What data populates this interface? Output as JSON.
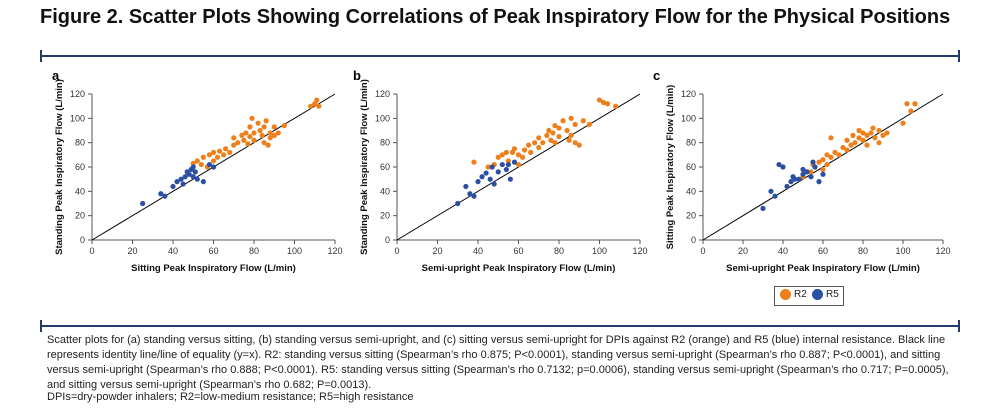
{
  "figure": {
    "title": "Figure 2. Scatter Plots Showing Correlations of Peak Inspiratory Flow for the Physical Positions",
    "caption_main": "Scatter plots for (a) standing versus sitting, (b) standing versus semi-upright, and (c) sitting versus semi-upright for DPIs against R2 (orange) and R5 (blue) internal resistance. Black line represents identity line/line of equality (y=x). R2: standing versus sitting (Spearman’s rho 0.875; P<0.0001), standing versus semi-upright (Spearman’s rho 0.887; P<0.0001), and sitting versus semi-upright (Spearman’s rho 0.888; P<0.0001). R5: standing versus sitting (Spearman’s rho 0.7132; p=0.0006), standing versus semi-upright (Spearman’s rho 0.717; P=0.0005), and sitting versus semi-upright (Spearman’s rho 0.682; P=0.0013).",
    "caption_abbrev": "DPIs=dry-powder inhalers; R2=low-medium resistance; R5=high resistance"
  },
  "colors": {
    "R2": "#ee7f1b",
    "R5": "#2b4fa3",
    "rule": "#233a6b",
    "identity_line": "#000000"
  },
  "legend": {
    "items": [
      {
        "label": "R2",
        "color": "#ee7f1b"
      },
      {
        "label": "R5",
        "color": "#2b4fa3"
      }
    ],
    "placement": "bottom-right"
  },
  "chart_data": [
    {
      "type": "scatter",
      "panel_label": "a",
      "xlabel": "Sitting Peak Inspiratory Flow (L/min)",
      "ylabel": "Standing Peak Inspiratory Flow (L/min)",
      "xlim": [
        0,
        120
      ],
      "ylim": [
        0,
        120
      ],
      "xticks": [
        0,
        20,
        40,
        60,
        80,
        100,
        120
      ],
      "yticks": [
        0,
        20,
        40,
        60,
        80,
        100,
        120
      ],
      "identity_line": true,
      "series": [
        {
          "name": "R2",
          "points": [
            [
              50,
              63
            ],
            [
              52,
              65
            ],
            [
              54,
              62
            ],
            [
              55,
              68
            ],
            [
              57,
              60
            ],
            [
              58,
              70
            ],
            [
              60,
              65
            ],
            [
              60,
              72
            ],
            [
              62,
              68
            ],
            [
              63,
              73
            ],
            [
              65,
              70
            ],
            [
              66,
              75
            ],
            [
              68,
              72
            ],
            [
              70,
              78
            ],
            [
              70,
              84
            ],
            [
              72,
              80
            ],
            [
              74,
              86
            ],
            [
              75,
              82
            ],
            [
              76,
              88
            ],
            [
              77,
              79
            ],
            [
              78,
              85
            ],
            [
              78,
              93
            ],
            [
              79,
              100
            ],
            [
              80,
              88
            ],
            [
              80,
              82
            ],
            [
              82,
              96
            ],
            [
              83,
              90
            ],
            [
              84,
              86
            ],
            [
              85,
              80
            ],
            [
              85,
              93
            ],
            [
              86,
              98
            ],
            [
              87,
              78
            ],
            [
              88,
              88
            ],
            [
              88,
              84
            ],
            [
              90,
              86
            ],
            [
              90,
              93
            ],
            [
              92,
              88
            ],
            [
              95,
              94
            ],
            [
              108,
              110
            ],
            [
              110,
              112
            ],
            [
              111,
              115
            ],
            [
              112,
              110
            ]
          ]
        },
        {
          "name": "R5",
          "points": [
            [
              25,
              30
            ],
            [
              34,
              38
            ],
            [
              36,
              36
            ],
            [
              40,
              44
            ],
            [
              42,
              48
            ],
            [
              44,
              50
            ],
            [
              45,
              46
            ],
            [
              46,
              52
            ],
            [
              47,
              56
            ],
            [
              48,
              54
            ],
            [
              49,
              58
            ],
            [
              50,
              60
            ],
            [
              50,
              52
            ],
            [
              51,
              56
            ],
            [
              52,
              50
            ],
            [
              55,
              48
            ],
            [
              58,
              62
            ],
            [
              60,
              60
            ]
          ]
        }
      ]
    },
    {
      "type": "scatter",
      "panel_label": "b",
      "xlabel": "Semi-upright Peak Inspiratory Flow (L/min)",
      "ylabel": "Standing Peak Inspiratory Flow (L/min)",
      "xlim": [
        0,
        120
      ],
      "ylim": [
        0,
        120
      ],
      "xticks": [
        0,
        20,
        40,
        60,
        80,
        100,
        120
      ],
      "yticks": [
        0,
        20,
        40,
        60,
        80,
        100,
        120
      ],
      "identity_line": true,
      "series": [
        {
          "name": "R2",
          "points": [
            [
              38,
              64
            ],
            [
              45,
              60
            ],
            [
              48,
              62
            ],
            [
              50,
              68
            ],
            [
              52,
              70
            ],
            [
              54,
              72
            ],
            [
              55,
              65
            ],
            [
              57,
              72
            ],
            [
              58,
              75
            ],
            [
              60,
              70
            ],
            [
              60,
              62
            ],
            [
              62,
              68
            ],
            [
              63,
              74
            ],
            [
              65,
              78
            ],
            [
              66,
              72
            ],
            [
              68,
              80
            ],
            [
              70,
              76
            ],
            [
              70,
              84
            ],
            [
              72,
              80
            ],
            [
              74,
              86
            ],
            [
              75,
              90
            ],
            [
              76,
              82
            ],
            [
              77,
              88
            ],
            [
              78,
              80
            ],
            [
              78,
              94
            ],
            [
              80,
              85
            ],
            [
              80,
              92
            ],
            [
              82,
              98
            ],
            [
              84,
              90
            ],
            [
              85,
              82
            ],
            [
              86,
              86
            ],
            [
              86,
              100
            ],
            [
              88,
              80
            ],
            [
              88,
              95
            ],
            [
              90,
              78
            ],
            [
              92,
              98
            ],
            [
              95,
              95
            ],
            [
              100,
              115
            ],
            [
              102,
              113
            ],
            [
              104,
              112
            ],
            [
              108,
              110
            ]
          ]
        },
        {
          "name": "R5",
          "points": [
            [
              30,
              30
            ],
            [
              34,
              44
            ],
            [
              36,
              38
            ],
            [
              38,
              36
            ],
            [
              40,
              48
            ],
            [
              42,
              52
            ],
            [
              44,
              55
            ],
            [
              46,
              50
            ],
            [
              47,
              60
            ],
            [
              48,
              46
            ],
            [
              50,
              56
            ],
            [
              52,
              62
            ],
            [
              54,
              58
            ],
            [
              55,
              62
            ],
            [
              56,
              50
            ],
            [
              58,
              64
            ]
          ]
        }
      ]
    },
    {
      "type": "scatter",
      "panel_label": "c",
      "xlabel": "Semi-upright Peak Inspiratory Flow (L/min)",
      "ylabel": "Sitting Peak Inspiratory Flow (L/min)",
      "xlim": [
        0,
        120
      ],
      "ylim": [
        0,
        120
      ],
      "xticks": [
        0,
        20,
        40,
        60,
        80,
        100,
        120
      ],
      "yticks": [
        0,
        20,
        40,
        60,
        80,
        100,
        120
      ],
      "identity_line": true,
      "series": [
        {
          "name": "R2",
          "points": [
            [
              50,
              52
            ],
            [
              54,
              56
            ],
            [
              55,
              62
            ],
            [
              56,
              60
            ],
            [
              58,
              64
            ],
            [
              60,
              58
            ],
            [
              60,
              66
            ],
            [
              62,
              70
            ],
            [
              62,
              62
            ],
            [
              64,
              68
            ],
            [
              64,
              84
            ],
            [
              66,
              72
            ],
            [
              68,
              70
            ],
            [
              70,
              76
            ],
            [
              72,
              74
            ],
            [
              72,
              82
            ],
            [
              74,
              78
            ],
            [
              75,
              86
            ],
            [
              76,
              80
            ],
            [
              78,
              84
            ],
            [
              78,
              90
            ],
            [
              80,
              82
            ],
            [
              80,
              88
            ],
            [
              82,
              78
            ],
            [
              82,
              86
            ],
            [
              84,
              88
            ],
            [
              85,
              92
            ],
            [
              86,
              84
            ],
            [
              88,
              80
            ],
            [
              88,
              90
            ],
            [
              90,
              86
            ],
            [
              92,
              88
            ],
            [
              100,
              96
            ],
            [
              102,
              112
            ],
            [
              104,
              106
            ],
            [
              106,
              112
            ]
          ]
        },
        {
          "name": "R5",
          "points": [
            [
              30,
              26
            ],
            [
              34,
              40
            ],
            [
              36,
              36
            ],
            [
              38,
              62
            ],
            [
              40,
              60
            ],
            [
              42,
              44
            ],
            [
              44,
              48
            ],
            [
              45,
              52
            ],
            [
              46,
              50
            ],
            [
              48,
              50
            ],
            [
              50,
              54
            ],
            [
              50,
              58
            ],
            [
              52,
              56
            ],
            [
              54,
              52
            ],
            [
              55,
              64
            ],
            [
              56,
              60
            ],
            [
              58,
              48
            ],
            [
              60,
              54
            ]
          ]
        }
      ]
    }
  ]
}
